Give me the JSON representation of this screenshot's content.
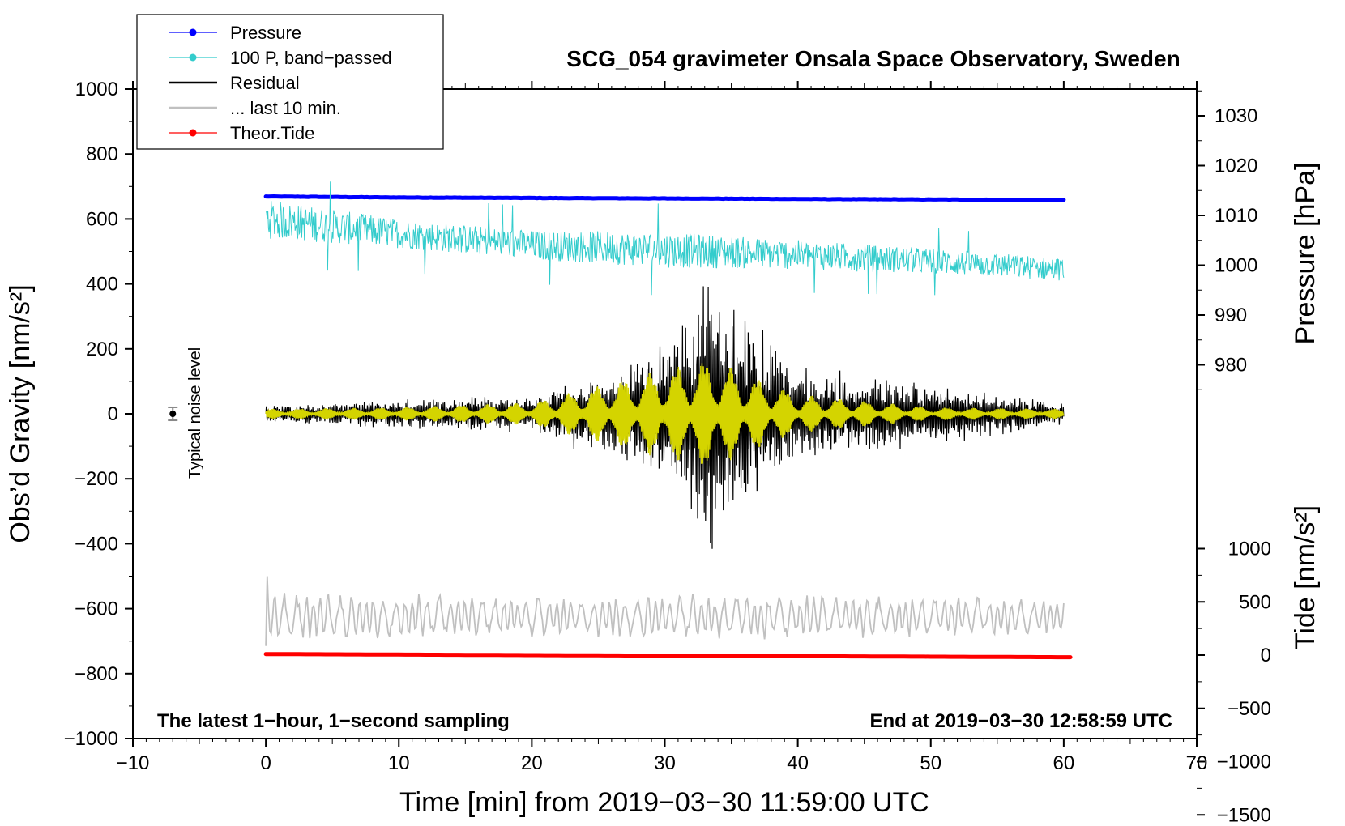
{
  "chart_data": {
    "type": "line",
    "title": "SCG_054 gravimeter Onsala Space Observatory, Sweden",
    "xlabel": "Time [min] from 2019−03−30 11:59:00 UTC",
    "ylabel": "Obs’d Gravity [nm/s²]",
    "ylabel_right_top": "Pressure [hPa]",
    "ylabel_right_bottom": "Tide [nm/s²]",
    "xlim": [
      -10,
      70
    ],
    "ylim": [
      -1000,
      1000
    ],
    "pressure_lim": [
      1035,
      975
    ],
    "tide_lim": [
      -1500,
      1100
    ],
    "x_ticks": [
      -10,
      0,
      10,
      20,
      30,
      40,
      50,
      60,
      70
    ],
    "x_tick_labels": [
      "−10",
      "0",
      "10",
      "20",
      "30",
      "40",
      "50",
      "60",
      "70"
    ],
    "y_ticks": [
      1000,
      800,
      600,
      400,
      200,
      0,
      -200,
      -400,
      -600,
      -800,
      -1000
    ],
    "y_tick_labels": [
      "1000",
      "800",
      "600",
      "400",
      "200",
      "0",
      "−200",
      "−400",
      "−600",
      "−800",
      "−1000"
    ],
    "pressure_ticks": [
      1030,
      1020,
      1010,
      1000,
      990,
      980
    ],
    "pressure_tick_labels": [
      "1030",
      "1020",
      "1010",
      "1000",
      "990",
      "980"
    ],
    "tide_ticks": [
      1000,
      500,
      0,
      -500,
      -1000,
      -1500
    ],
    "tide_tick_labels": [
      "1000",
      "500",
      "0",
      "−500",
      "−1000",
      "−1500"
    ],
    "legend": [
      {
        "label": "Pressure",
        "color": "#0000ff",
        "marker": "dot"
      },
      {
        "label": "100 P, band−passed",
        "color": "#33cccc",
        "marker": "dot"
      },
      {
        "label": "Residual",
        "color": "#000000",
        "marker": "line"
      },
      {
        "label": "... last 10 min.",
        "color": "#c0c0c0",
        "marker": "line"
      },
      {
        "label": "Theor.Tide",
        "color": "#ff0000",
        "marker": "dot"
      }
    ],
    "series": [
      {
        "name": "Pressure",
        "axis": "pressure",
        "color": "#0000ff",
        "x": [
          0,
          10,
          20,
          30,
          40,
          50,
          60
        ],
        "values": [
          1013.8,
          1013.6,
          1013.5,
          1013.4,
          1013.3,
          1013.2,
          1013.1
        ]
      },
      {
        "name": "100 P, band−passed",
        "axis": "gravity",
        "color": "#33cccc",
        "x": [
          0,
          10,
          20,
          30,
          40,
          50,
          60
        ],
        "envelope_center": [
          600,
          555,
          520,
          505,
          490,
          470,
          445
        ],
        "envelope_amplitude": [
          60,
          45,
          45,
          55,
          45,
          40,
          35
        ]
      },
      {
        "name": "Residual",
        "axis": "gravity",
        "color": "#000000",
        "x": [
          0,
          10,
          20,
          30,
          33.3,
          40,
          50,
          60
        ],
        "envelope_amplitude": [
          30,
          45,
          60,
          220,
          450,
          150,
          100,
          35
        ]
      },
      {
        "name": "Residual (filtered)",
        "axis": "gravity",
        "color": "#d4d400",
        "x": [
          0,
          10,
          20,
          30,
          33.3,
          40,
          50,
          60
        ],
        "envelope_amplitude": [
          15,
          20,
          35,
          140,
          170,
          60,
          20,
          15
        ]
      },
      {
        "name": "... last 10 min.",
        "axis": "gravity",
        "color": "#c0c0c0",
        "x": [
          0,
          10,
          20,
          30,
          40,
          50,
          60
        ],
        "center": -625,
        "envelope_amplitude": [
          80,
          70,
          70,
          75,
          70,
          70,
          60
        ]
      },
      {
        "name": "Theor.Tide",
        "axis": "tide",
        "color": "#ff0000",
        "x": [
          0,
          10,
          20,
          30,
          40,
          50,
          60.5
        ],
        "values": [
          10,
          5,
          0,
          -5,
          -10,
          -15,
          -20
        ]
      }
    ],
    "noise_marker": {
      "x": -7,
      "y": 0,
      "error": 20,
      "label": "Typical noise level"
    },
    "annotations": {
      "bottom_left": "The latest 1−hour, 1−second sampling",
      "bottom_right": "End at 2019−03−30 12:58:59 UTC"
    }
  }
}
